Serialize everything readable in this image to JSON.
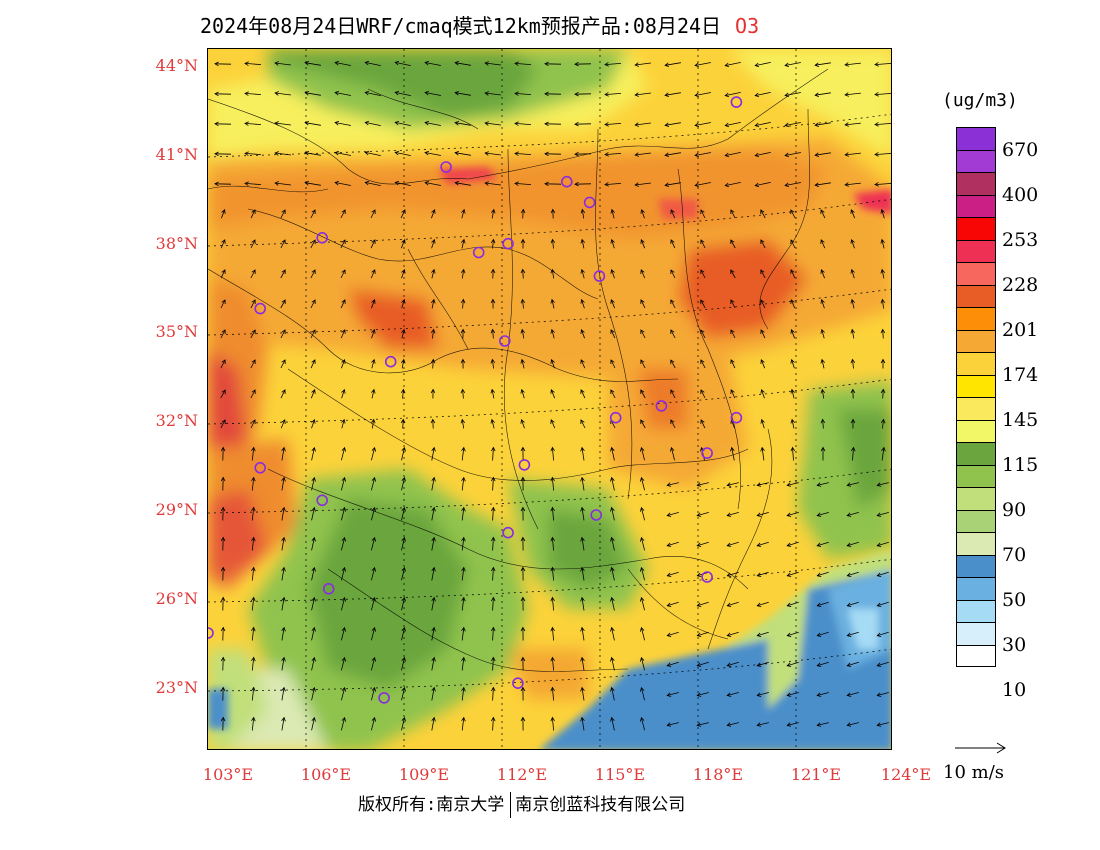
{
  "title": {
    "text": "2024年08月24日WRF/cmaq模式12km预报产品:08月24日",
    "species": "O3"
  },
  "map": {
    "lat_labels": [
      "44°N",
      "41°N",
      "38°N",
      "35°N",
      "32°N",
      "29°N",
      "26°N",
      "23°N"
    ],
    "lon_labels": [
      "103°E",
      "106°E",
      "109°E",
      "112°E",
      "115°E",
      "118°E",
      "121°E",
      "124°E"
    ],
    "extent": {
      "lon": [
        103,
        124
      ],
      "lat": [
        21,
        44.8
      ]
    },
    "cities": [
      {
        "lon": 119.2,
        "lat": 43.0
      },
      {
        "lon": 110.3,
        "lat": 40.8
      },
      {
        "lon": 114.0,
        "lat": 40.3
      },
      {
        "lon": 114.7,
        "lat": 39.6
      },
      {
        "lon": 106.5,
        "lat": 38.4
      },
      {
        "lon": 111.3,
        "lat": 37.9
      },
      {
        "lon": 112.2,
        "lat": 38.2
      },
      {
        "lon": 115.0,
        "lat": 37.1
      },
      {
        "lon": 104.6,
        "lat": 36.0
      },
      {
        "lon": 112.1,
        "lat": 34.9
      },
      {
        "lon": 108.6,
        "lat": 34.2
      },
      {
        "lon": 116.9,
        "lat": 32.7
      },
      {
        "lon": 115.5,
        "lat": 32.3
      },
      {
        "lon": 119.2,
        "lat": 32.3
      },
      {
        "lon": 118.3,
        "lat": 31.1
      },
      {
        "lon": 104.6,
        "lat": 30.6
      },
      {
        "lon": 112.7,
        "lat": 30.7
      },
      {
        "lon": 106.5,
        "lat": 29.5
      },
      {
        "lon": 114.9,
        "lat": 29.0
      },
      {
        "lon": 112.2,
        "lat": 28.4
      },
      {
        "lon": 106.7,
        "lat": 26.5
      },
      {
        "lon": 118.3,
        "lat": 26.9
      },
      {
        "lon": 103.0,
        "lat": 25.0
      },
      {
        "lon": 112.5,
        "lat": 23.3
      },
      {
        "lon": 108.4,
        "lat": 22.8
      }
    ],
    "colors": {
      "orange": "#f5a934",
      "orange_dark": "#ef8c2e",
      "red_high": "#e24a3a",
      "yellow": "#fcd23a",
      "yellow_light": "#f7ef5d",
      "green_dark": "#6aa63d",
      "green": "#90c34e",
      "green_light": "#c1df7a",
      "green_pale": "#dbe9b3",
      "blue": "#4b8fca",
      "blue_light": "#88c5ea"
    }
  },
  "legend": {
    "units": "(ug/m3)",
    "colors": [
      "#8b2fd6",
      "#a23ad4",
      "#b0305f",
      "#cc1f86",
      "#f80505",
      "#ee3054",
      "#f7675e",
      "#e85d25",
      "#fd8e07",
      "#f5a934",
      "#fcd23a",
      "#ffe500",
      "#fae95c",
      "#f2f767",
      "#6aa63d",
      "#90c34e",
      "#c1df7a",
      "#a9d276",
      "#dbe9b3",
      "#4b8fca",
      "#6ab0e0",
      "#a6dbf5",
      "#d6effb",
      "#ffffff"
    ],
    "labels": [
      "670",
      "400",
      "253",
      "228",
      "201",
      "174",
      "145",
      "115",
      "90",
      "70",
      "50",
      "30",
      "10"
    ]
  },
  "wind_reference": {
    "label": "10 m/s"
  },
  "footer": {
    "copyright_left": "版权所有:南京大学",
    "copyright_right": "南京创蓝科技有限公司"
  }
}
